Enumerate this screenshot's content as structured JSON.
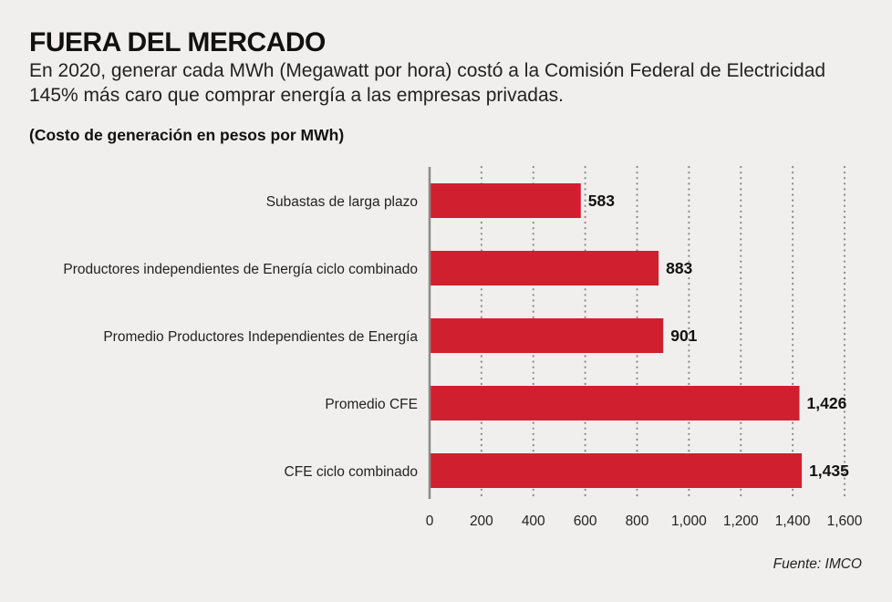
{
  "header": {
    "title": "FUERA DEL MERCADO",
    "subtitle": "En 2020, generar cada MWh (Megawatt por hora) costó a la Comisión Federal de Electricidad 145% más caro que comprar energía a las empresas privadas.",
    "unit_note": "(Costo de generación en pesos por MWh)"
  },
  "footer": {
    "source": "Fuente: IMCO"
  },
  "chart_data": {
    "type": "bar",
    "orientation": "horizontal",
    "categories": [
      "Subastas de larga plazo",
      "Productores independientes de Energía ciclo combinado",
      "Promedio Productores Independientes de Energía",
      "Promedio CFE",
      "CFE ciclo combinado"
    ],
    "values": [
      583,
      883,
      901,
      1426,
      1435
    ],
    "value_labels": [
      "583",
      "883",
      "901",
      "1,426",
      "1,435"
    ],
    "xlim": [
      0,
      1600
    ],
    "ticks": [
      0,
      200,
      400,
      600,
      800,
      1000,
      1200,
      1400,
      1600
    ],
    "tick_labels": [
      "0",
      "200",
      "400",
      "600",
      "800",
      "1,000",
      "1,200",
      "1,400",
      "1,600"
    ],
    "grid": "vertical dotted",
    "bar_color": "#d0202f",
    "gridline_color": "#8a8a8a",
    "axis_color": "#8a8a8a"
  }
}
